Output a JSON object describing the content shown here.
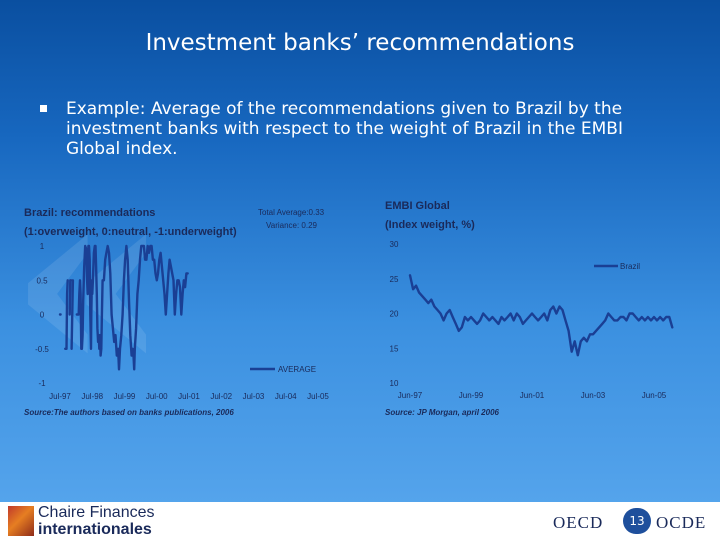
{
  "slide": {
    "title": "Investment banks’ recommendations",
    "bullet": "Example: Average of the recommendations given to Brazil by the investment banks with respect to the weight of Brazil in the EMBI Global index.",
    "background_color": "#1767bf"
  },
  "chart_data": [
    {
      "type": "line",
      "title": "Brazil: recommendations",
      "subtitle": "(1:overweight, 0:neutral, -1:underweight)",
      "annotations": [
        "Total Average:0.33",
        "Variance: 0.29"
      ],
      "x_ticks": [
        "Jul-97",
        "Jul-98",
        "Jul-99",
        "Jul-00",
        "Jul-01",
        "Jul-02",
        "Jul-03",
        "Jul-04",
        "Jul-05"
      ],
      "y_ticks": [
        "1",
        "0.5",
        "0",
        "-0.5",
        "-1"
      ],
      "ylim": [
        -1,
        1
      ],
      "source": "Source:The authors based on banks publications, 2006",
      "line_color": "#1a3f94",
      "series": [
        {
          "name": "AVERAGE",
          "segments": [
            [
              [
                0.0,
                0.0
              ],
              [
                0.02,
                0.0
              ]
            ],
            [
              [
                0.16,
                -0.5
              ],
              [
                0.2,
                -0.5
              ],
              [
                0.22,
                0.3
              ],
              [
                0.24,
                0.5
              ]
            ],
            [
              [
                0.3,
                0.0
              ],
              [
                0.32,
                0.5
              ],
              [
                0.34,
                0.5
              ]
            ],
            [
              [
                0.36,
                -0.5
              ],
              [
                0.4,
                0.5
              ]
            ],
            [
              [
                0.52,
                0.0
              ],
              [
                0.58,
                0.0
              ],
              [
                0.6,
                0.3
              ],
              [
                0.62,
                0.5
              ],
              [
                0.64,
                0.3
              ],
              [
                0.66,
                -0.5
              ],
              [
                0.68,
                -0.5
              ],
              [
                0.7,
                -0.3
              ],
              [
                0.72,
                0.2
              ],
              [
                0.75,
                0.7
              ],
              [
                0.78,
                1.0
              ],
              [
                0.82,
                0.95
              ],
              [
                0.84,
                0.5
              ],
              [
                0.86,
                0.3
              ],
              [
                0.88,
                1.0
              ],
              [
                0.9,
                1.0
              ],
              [
                0.92,
                0.8
              ],
              [
                0.94,
                0.0
              ],
              [
                0.96,
                -0.5
              ],
              [
                0.97,
                0.0
              ],
              [
                0.99,
                0.5
              ],
              [
                1.0,
                0.3
              ],
              [
                1.02,
                0.5
              ],
              [
                1.05,
                0.9
              ],
              [
                1.08,
                1.0
              ],
              [
                1.1,
                1.0
              ],
              [
                1.12,
                0.7
              ],
              [
                1.14,
                0.3
              ],
              [
                1.16,
                -0.2
              ],
              [
                1.18,
                -0.4
              ],
              [
                1.2,
                -0.3
              ],
              [
                1.22,
                -0.5
              ],
              [
                1.24,
                -0.3
              ],
              [
                1.26,
                -0.6
              ],
              [
                1.28,
                -0.5
              ],
              [
                1.3,
                0.0
              ],
              [
                1.32,
                0.5
              ],
              [
                1.36,
                0.5
              ],
              [
                1.4,
                0.8
              ],
              [
                1.44,
                0.9
              ],
              [
                1.48,
                1.0
              ],
              [
                1.52,
                0.9
              ],
              [
                1.56,
                0.6
              ],
              [
                1.6,
                0.0
              ],
              [
                1.64,
                -0.2
              ],
              [
                1.68,
                -0.4
              ],
              [
                1.72,
                -0.3
              ],
              [
                1.76,
                -0.6
              ],
              [
                1.8,
                -0.5
              ],
              [
                1.83,
                -0.8
              ],
              [
                1.86,
                -0.5
              ],
              [
                1.9,
                -0.3
              ],
              [
                1.94,
                0.0
              ],
              [
                1.98,
                0.5
              ],
              [
                2.02,
                0.8
              ],
              [
                2.06,
                1.0
              ],
              [
                2.1,
                0.8
              ],
              [
                2.14,
                0.2
              ],
              [
                2.18,
                -0.3
              ],
              [
                2.22,
                -0.6
              ],
              [
                2.25,
                -0.5
              ],
              [
                2.28,
                -0.6
              ],
              [
                2.3,
                -0.8
              ],
              [
                2.32,
                -0.5
              ],
              [
                2.36,
                -0.2
              ],
              [
                2.4,
                0.3
              ],
              [
                2.44,
                0.5
              ],
              [
                2.48,
                0.8
              ],
              [
                2.52,
                1.0
              ],
              [
                2.56,
                1.0
              ],
              [
                2.6,
                1.0
              ],
              [
                2.64,
                0.8
              ],
              [
                2.68,
                0.8
              ],
              [
                2.72,
                1.0
              ],
              [
                2.76,
                0.9
              ],
              [
                2.8,
                1.0
              ],
              [
                2.84,
                1.0
              ],
              [
                2.88,
                0.8
              ],
              [
                2.92,
                0.8
              ],
              [
                2.96,
                0.6
              ],
              [
                3.0,
                0.5
              ],
              [
                3.04,
                0.6
              ],
              [
                3.08,
                0.8
              ],
              [
                3.12,
                0.9
              ],
              [
                3.16,
                0.7
              ],
              [
                3.2,
                0.5
              ],
              [
                3.24,
                0.3
              ],
              [
                3.28,
                0.0
              ],
              [
                3.32,
                0.3
              ],
              [
                3.36,
                0.6
              ],
              [
                3.4,
                0.8
              ],
              [
                3.44,
                0.7
              ],
              [
                3.48,
                0.6
              ],
              [
                3.52,
                0.5
              ],
              [
                3.56,
                0.0
              ],
              [
                3.6,
                0.3
              ],
              [
                3.64,
                0.5
              ],
              [
                3.68,
                0.5
              ],
              [
                3.72,
                0.4
              ],
              [
                3.76,
                0.0
              ],
              [
                3.8,
                0.3
              ],
              [
                3.84,
                0.5
              ],
              [
                3.88,
                0.4
              ],
              [
                3.92,
                0.6
              ],
              [
                3.96,
                0.6
              ]
            ]
          ]
        }
      ]
    },
    {
      "type": "line",
      "title": "EMBI Global",
      "subtitle": "(Index weight, %)",
      "x_ticks": [
        "Jun-97",
        "Jun-99",
        "Jun-01",
        "Jun-03",
        "Jun-05"
      ],
      "y_ticks": [
        "30",
        "25",
        "20",
        "15",
        "10"
      ],
      "ylim": [
        10,
        30
      ],
      "source": "Source: JP Morgan, april 2006",
      "line_color": "#1a3f94",
      "series": [
        {
          "name": "Brazil",
          "segments": [
            [
              [
                0.0,
                25.5
              ],
              [
                0.05,
                23.5
              ],
              [
                0.1,
                24.0
              ],
              [
                0.15,
                23.0
              ],
              [
                0.2,
                22.5
              ],
              [
                0.25,
                22.0
              ],
              [
                0.3,
                21.5
              ],
              [
                0.35,
                22.0
              ],
              [
                0.4,
                21.0
              ],
              [
                0.45,
                20.5
              ],
              [
                0.5,
                20.0
              ],
              [
                0.55,
                19.0
              ],
              [
                0.6,
                20.0
              ],
              [
                0.65,
                20.5
              ],
              [
                0.7,
                19.5
              ],
              [
                0.75,
                18.5
              ],
              [
                0.8,
                17.5
              ],
              [
                0.85,
                18.0
              ],
              [
                0.9,
                19.5
              ],
              [
                0.95,
                19.0
              ],
              [
                1.0,
                19.5
              ],
              [
                1.05,
                19.0
              ],
              [
                1.1,
                18.5
              ],
              [
                1.15,
                19.0
              ],
              [
                1.2,
                20.0
              ],
              [
                1.25,
                19.5
              ],
              [
                1.3,
                19.0
              ],
              [
                1.35,
                19.5
              ],
              [
                1.4,
                19.0
              ],
              [
                1.45,
                18.5
              ],
              [
                1.5,
                19.5
              ],
              [
                1.55,
                19.0
              ],
              [
                1.6,
                19.5
              ],
              [
                1.65,
                20.0
              ],
              [
                1.7,
                19.0
              ],
              [
                1.75,
                20.0
              ],
              [
                1.8,
                19.5
              ],
              [
                1.85,
                18.5
              ],
              [
                1.9,
                19.0
              ],
              [
                1.95,
                19.5
              ],
              [
                2.0,
                20.0
              ],
              [
                2.05,
                19.5
              ],
              [
                2.1,
                19.0
              ],
              [
                2.15,
                19.5
              ],
              [
                2.2,
                20.0
              ],
              [
                2.25,
                19.0
              ],
              [
                2.3,
                20.5
              ],
              [
                2.35,
                21.0
              ],
              [
                2.4,
                20.0
              ],
              [
                2.45,
                21.0
              ],
              [
                2.5,
                20.5
              ],
              [
                2.55,
                19.0
              ],
              [
                2.6,
                17.5
              ],
              [
                2.65,
                14.5
              ],
              [
                2.7,
                16.0
              ],
              [
                2.75,
                14.0
              ],
              [
                2.8,
                16.0
              ],
              [
                2.85,
                16.5
              ],
              [
                2.9,
                16.0
              ],
              [
                2.95,
                17.0
              ],
              [
                3.0,
                17.0
              ],
              [
                3.05,
                17.5
              ],
              [
                3.1,
                18.0
              ],
              [
                3.15,
                18.5
              ],
              [
                3.2,
                19.0
              ],
              [
                3.25,
                20.0
              ],
              [
                3.3,
                19.5
              ],
              [
                3.35,
                19.0
              ],
              [
                3.4,
                19.0
              ],
              [
                3.45,
                19.5
              ],
              [
                3.5,
                19.5
              ],
              [
                3.55,
                19.0
              ],
              [
                3.6,
                20.0
              ],
              [
                3.65,
                20.0
              ],
              [
                3.7,
                19.5
              ],
              [
                3.75,
                19.0
              ],
              [
                3.8,
                19.5
              ],
              [
                3.85,
                19.0
              ],
              [
                3.9,
                19.5
              ],
              [
                3.95,
                19.0
              ],
              [
                4.0,
                19.5
              ],
              [
                4.05,
                19.0
              ],
              [
                4.1,
                19.5
              ],
              [
                4.15,
                19.0
              ],
              [
                4.2,
                19.5
              ],
              [
                4.25,
                19.5
              ],
              [
                4.3,
                18.0
              ]
            ]
          ]
        }
      ]
    }
  ],
  "footer": {
    "brand_line1": "Chaire Finances",
    "brand_line2": "internationales",
    "oecd_left": "OECD",
    "page_number": "13",
    "oecd_right": "OCDE"
  }
}
